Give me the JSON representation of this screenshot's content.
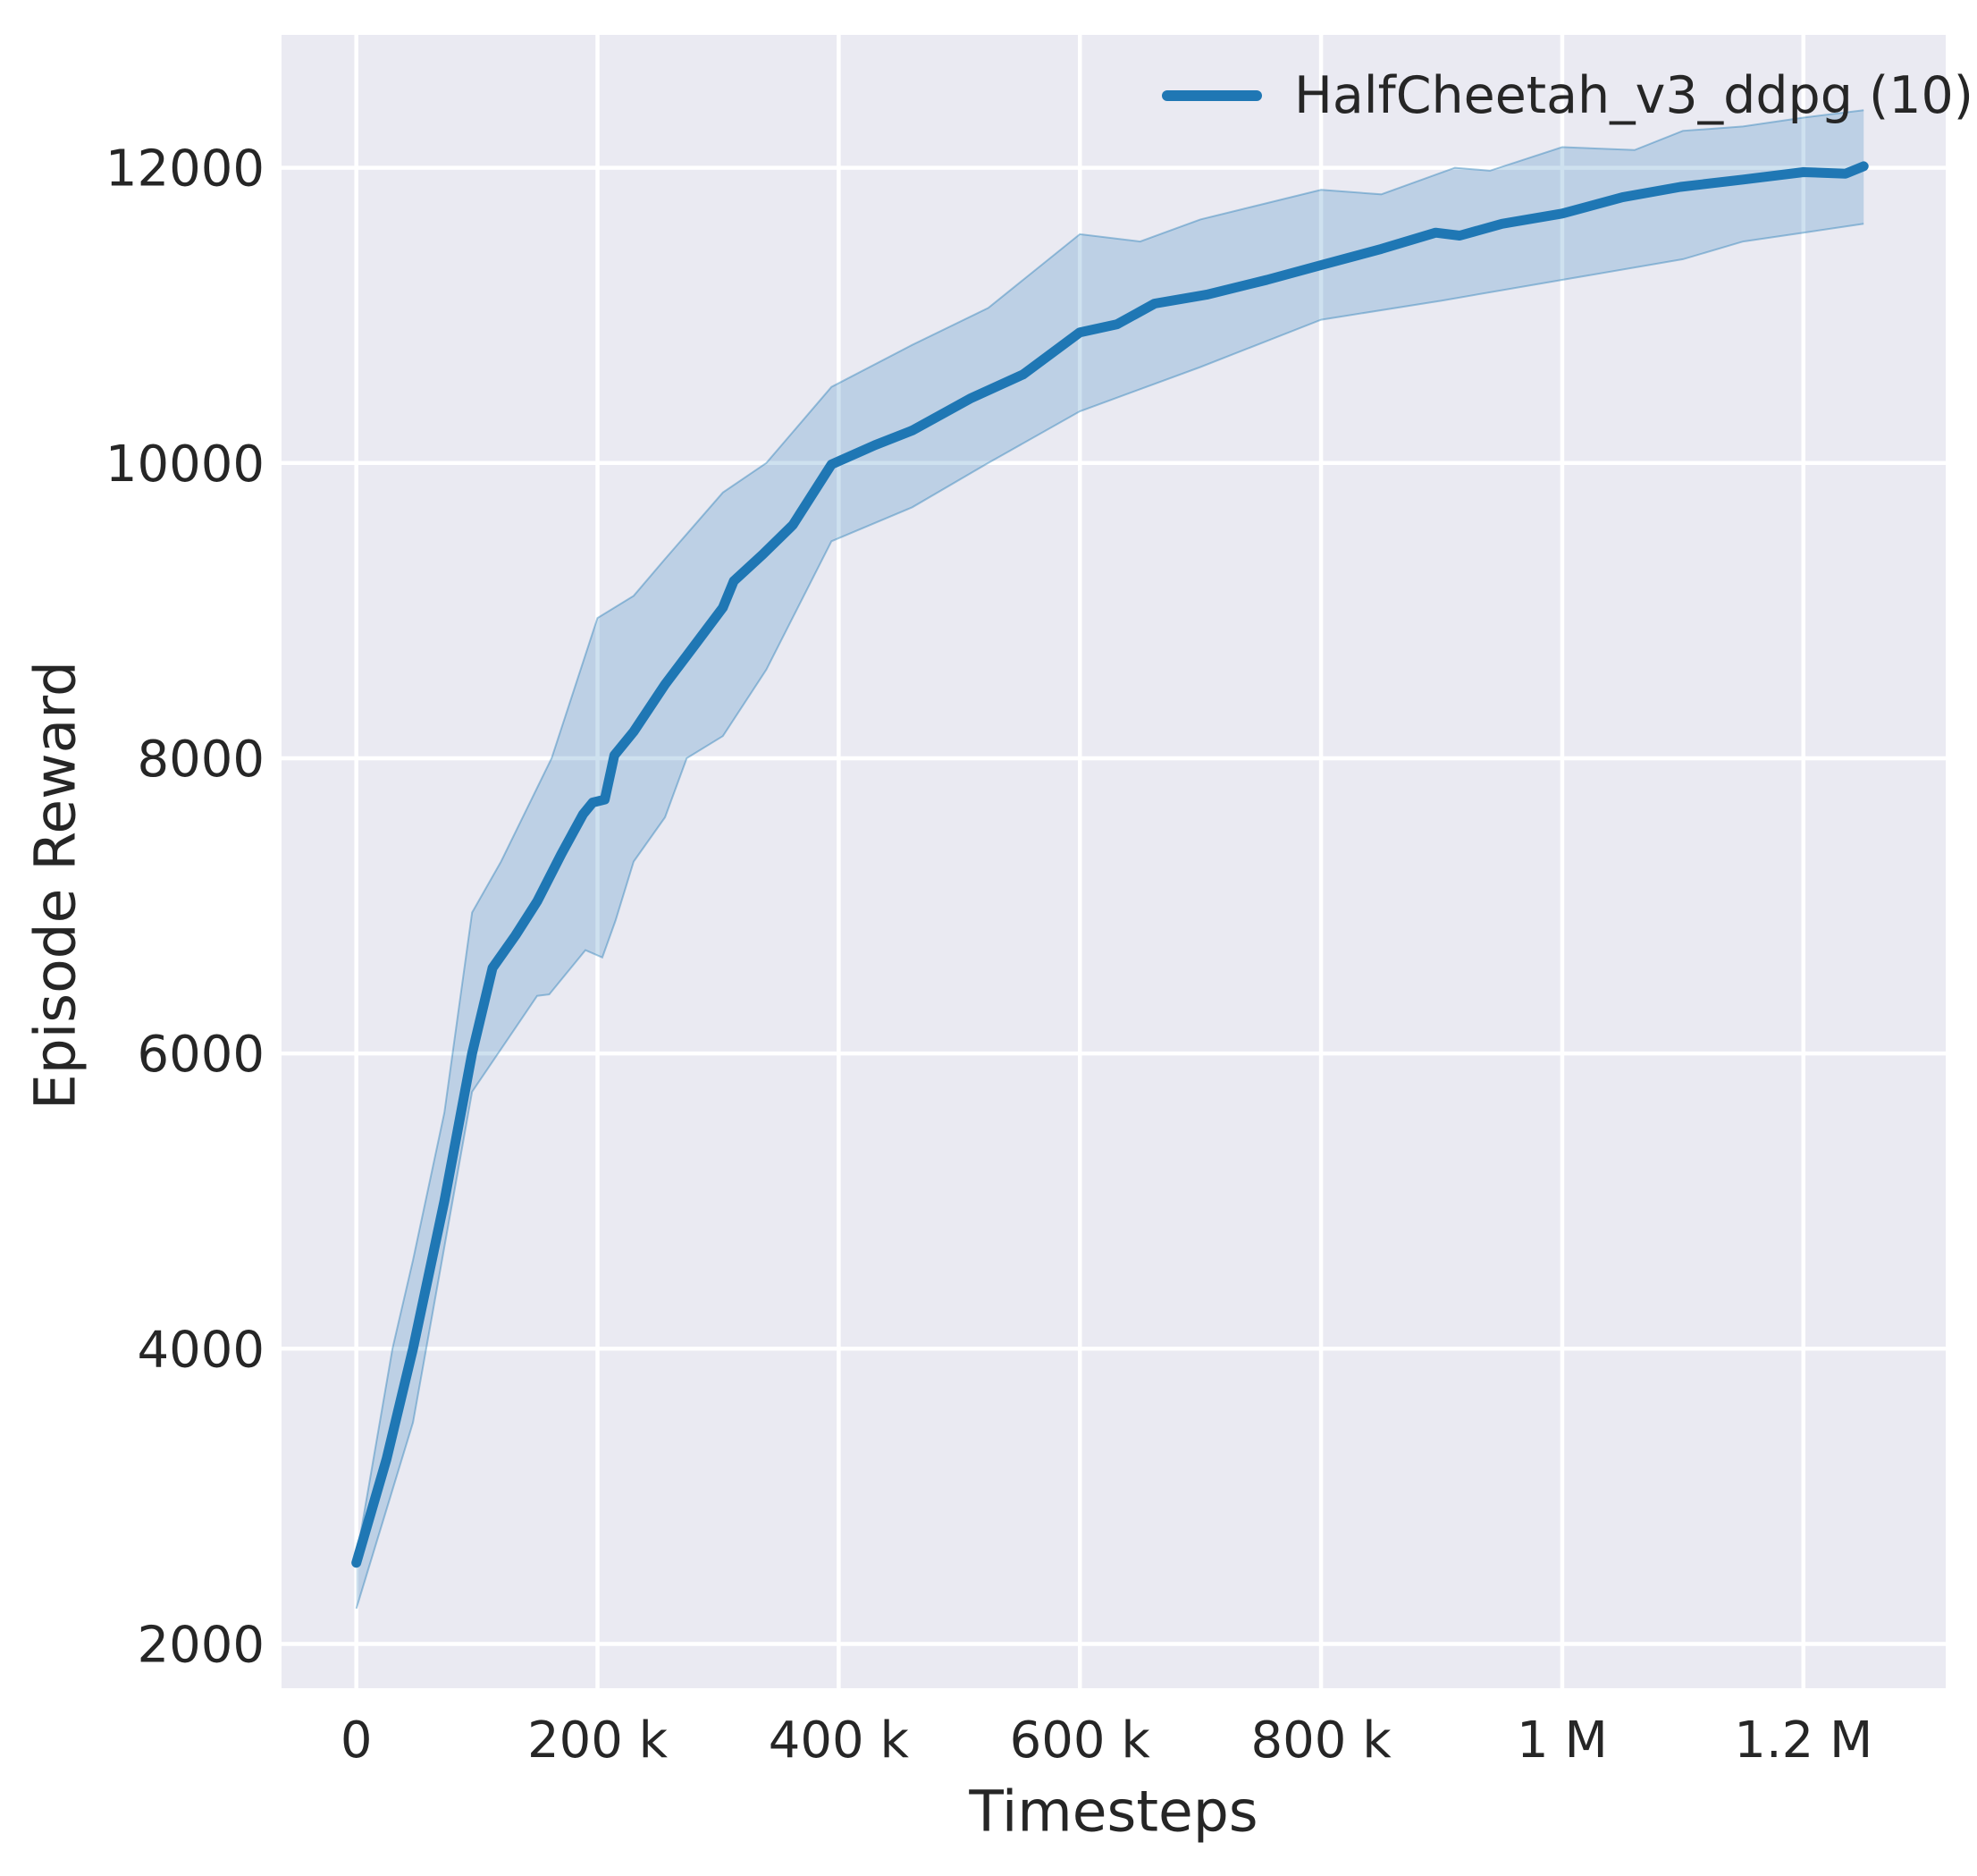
{
  "figure": {
    "background": "#ffffff",
    "plot_background": "#eaeaf2",
    "grid_color": "#ffffff",
    "text_color": "#262626"
  },
  "chart_data": {
    "type": "line",
    "title": "",
    "xlabel": "Timesteps",
    "ylabel": "Episode Reward",
    "grid": true,
    "legend_position": "upper right",
    "legend": [
      {
        "label": "HalfCheetah_v3_ddpg (10)",
        "color": "#1f77b4"
      }
    ],
    "xlim": [
      -62000,
      1318000
    ],
    "ylim": [
      1700,
      12900
    ],
    "xticks": [
      {
        "value": 0,
        "label": "0"
      },
      {
        "value": 200000,
        "label": "200 k"
      },
      {
        "value": 400000,
        "label": "400 k"
      },
      {
        "value": 600000,
        "label": "600 k"
      },
      {
        "value": 800000,
        "label": "800 k"
      },
      {
        "value": 1000000,
        "label": "1 M"
      },
      {
        "value": 1200000,
        "label": "1.2 M"
      }
    ],
    "yticks": [
      {
        "value": 2000,
        "label": "2000"
      },
      {
        "value": 4000,
        "label": "4000"
      },
      {
        "value": 6000,
        "label": "6000"
      },
      {
        "value": 8000,
        "label": "8000"
      },
      {
        "value": 10000,
        "label": "10000"
      },
      {
        "value": 12000,
        "label": "12000"
      }
    ],
    "series": [
      {
        "name": "HalfCheetah_v3_ddpg (10)",
        "color": "#1f77b4",
        "line_width": 11,
        "band_fill": "rgba(31,119,180,0.22)",
        "band_edge": "rgba(31,119,180,0.40)",
        "points": [
          [
            0,
            2550
          ],
          [
            25000,
            3250
          ],
          [
            47000,
            4000
          ],
          [
            73000,
            5000
          ],
          [
            96000,
            6000
          ],
          [
            113000,
            6580
          ],
          [
            132000,
            6800
          ],
          [
            150000,
            7030
          ],
          [
            170000,
            7350
          ],
          [
            188000,
            7620
          ],
          [
            196000,
            7700
          ],
          [
            206000,
            7720
          ],
          [
            214000,
            8020
          ],
          [
            230000,
            8180
          ],
          [
            256000,
            8500
          ],
          [
            280000,
            8760
          ],
          [
            304000,
            9020
          ],
          [
            313000,
            9200
          ],
          [
            337000,
            9380
          ],
          [
            362000,
            9580
          ],
          [
            394000,
            9990
          ],
          [
            430000,
            10120
          ],
          [
            461000,
            10220
          ],
          [
            510000,
            10440
          ],
          [
            553000,
            10600
          ],
          [
            600000,
            10885
          ],
          [
            631000,
            10940
          ],
          [
            662000,
            11080
          ],
          [
            705000,
            11140
          ],
          [
            755000,
            11240
          ],
          [
            800000,
            11340
          ],
          [
            850000,
            11450
          ],
          [
            895000,
            11560
          ],
          [
            915000,
            11540
          ],
          [
            950000,
            11620
          ],
          [
            1000000,
            11690
          ],
          [
            1050000,
            11800
          ],
          [
            1098000,
            11870
          ],
          [
            1150000,
            11920
          ],
          [
            1200000,
            11970
          ],
          [
            1235000,
            11960
          ],
          [
            1250000,
            12010
          ]
        ],
        "band_lower": [
          [
            0,
            2240
          ],
          [
            47000,
            3500
          ],
          [
            96000,
            5740
          ],
          [
            150000,
            6390
          ],
          [
            160000,
            6400
          ],
          [
            175000,
            6550
          ],
          [
            190000,
            6700
          ],
          [
            204000,
            6650
          ],
          [
            215000,
            6900
          ],
          [
            230000,
            7300
          ],
          [
            256000,
            7600
          ],
          [
            274000,
            8000
          ],
          [
            304000,
            8150
          ],
          [
            340000,
            8600
          ],
          [
            394000,
            9470
          ],
          [
            461000,
            9700
          ],
          [
            524000,
            10000
          ],
          [
            600000,
            10350
          ],
          [
            700000,
            10650
          ],
          [
            800000,
            10970
          ],
          [
            900000,
            11100
          ],
          [
            1000000,
            11240
          ],
          [
            1100000,
            11380
          ],
          [
            1150000,
            11500
          ],
          [
            1200000,
            11560
          ],
          [
            1250000,
            11620
          ]
        ],
        "band_upper": [
          [
            0,
            2580
          ],
          [
            30000,
            4000
          ],
          [
            47000,
            4600
          ],
          [
            73000,
            5600
          ],
          [
            96000,
            6955
          ],
          [
            120000,
            7300
          ],
          [
            150000,
            7800
          ],
          [
            162000,
            8000
          ],
          [
            200000,
            8950
          ],
          [
            230000,
            9100
          ],
          [
            256000,
            9350
          ],
          [
            304000,
            9800
          ],
          [
            340000,
            10000
          ],
          [
            394000,
            10515
          ],
          [
            461000,
            10800
          ],
          [
            524000,
            11050
          ],
          [
            600000,
            11550
          ],
          [
            650000,
            11500
          ],
          [
            700000,
            11650
          ],
          [
            800000,
            11850
          ],
          [
            850000,
            11820
          ],
          [
            911000,
            12000
          ],
          [
            940000,
            11980
          ],
          [
            1000000,
            12140
          ],
          [
            1060000,
            12120
          ],
          [
            1100000,
            12250
          ],
          [
            1150000,
            12280
          ],
          [
            1200000,
            12340
          ],
          [
            1250000,
            12390
          ]
        ]
      }
    ]
  }
}
